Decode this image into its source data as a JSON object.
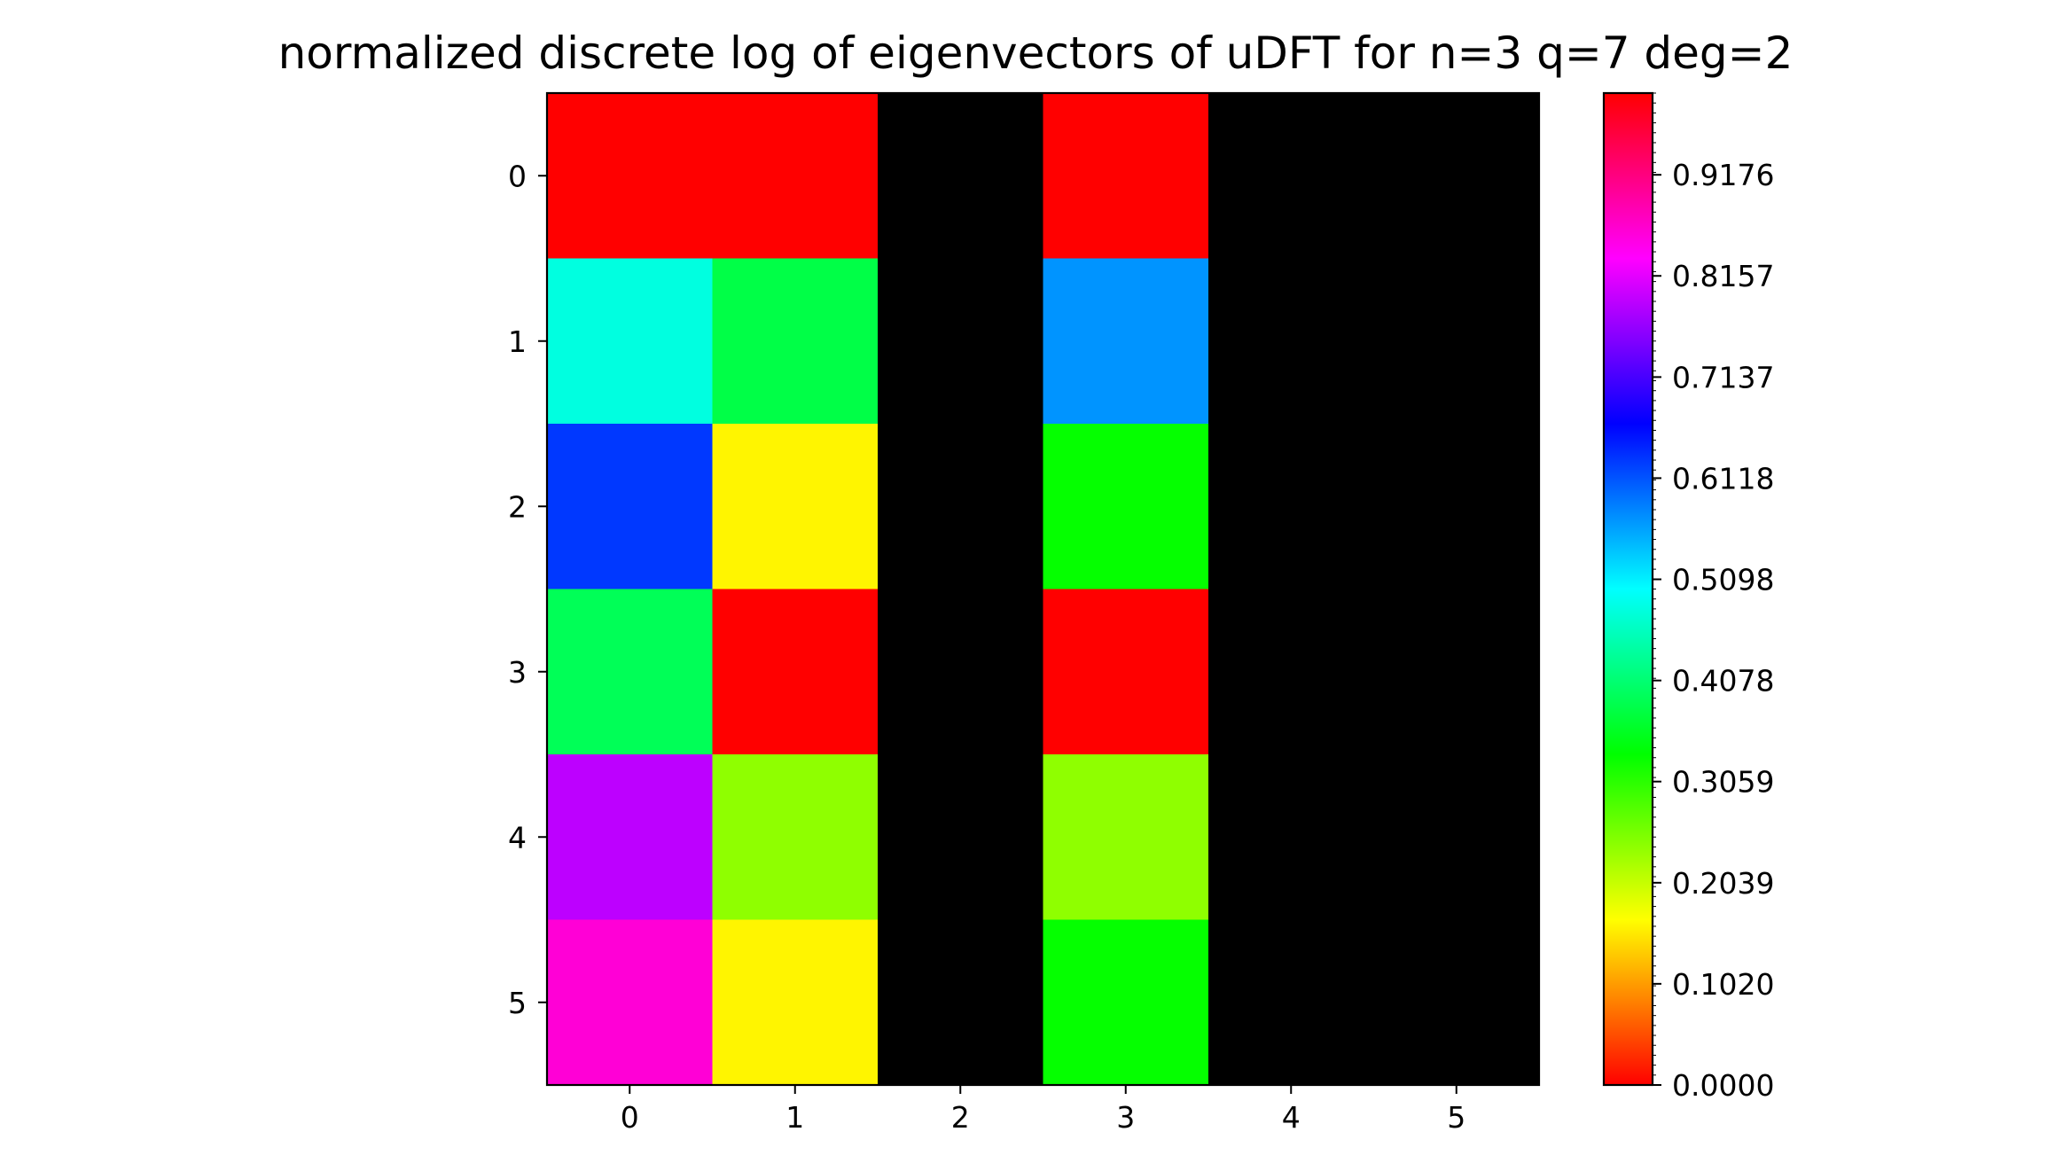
{
  "chart_data": {
    "type": "heatmap",
    "title": "normalized discrete log of eigenvectors of uDFT for n=3 q=7 deg=2",
    "x_ticks": [
      "0",
      "1",
      "2",
      "3",
      "4",
      "5"
    ],
    "y_ticks": [
      "0",
      "1",
      "2",
      "3",
      "4",
      "5"
    ],
    "colormap": "hsv",
    "masked_color": "#000000",
    "vmin": 0.0,
    "vmax": 1.0,
    "values": [
      [
        0.0,
        0.0,
        null,
        0.0,
        null,
        null
      ],
      [
        0.48,
        0.38,
        null,
        0.57,
        null,
        null
      ],
      [
        0.63,
        0.16,
        null,
        0.33,
        null,
        null
      ],
      [
        0.39,
        0.0,
        null,
        0.0,
        null,
        null
      ],
      [
        0.79,
        0.24,
        null,
        0.24,
        null,
        null
      ],
      [
        0.86,
        0.16,
        null,
        0.33,
        null,
        null
      ]
    ],
    "colorbar_ticks": [
      "0.0000",
      "0.1020",
      "0.2039",
      "0.3059",
      "0.4078",
      "0.5098",
      "0.6118",
      "0.7137",
      "0.8157",
      "0.9176"
    ],
    "colorbar_tick_values": [
      0.0,
      0.102,
      0.2039,
      0.3059,
      0.4078,
      0.5098,
      0.6118,
      0.7137,
      0.8157,
      0.9176
    ]
  }
}
